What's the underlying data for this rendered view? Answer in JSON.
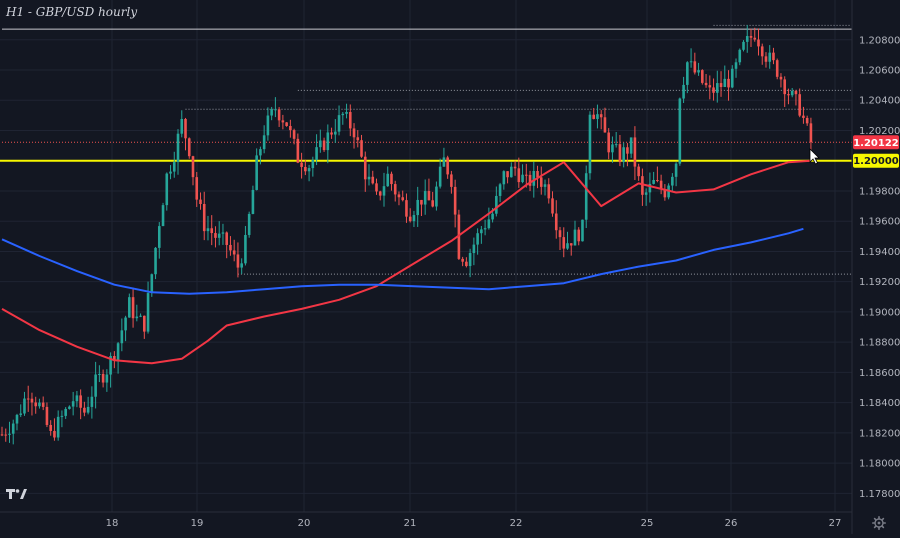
{
  "chart_title": "H1 - GBP/USD hourly",
  "colors": {
    "background": "#131722",
    "grid": "#1f2433",
    "up": "#26a69a",
    "down": "#ef5350",
    "ma_red": "#f23645",
    "ma_blue": "#2962ff",
    "support_line": "#f7f700",
    "axis_text": "#b2b5be",
    "current_price_tag": "#f23645"
  },
  "chart_data": {
    "type": "candlestick",
    "title": "H1 - GBP/USD hourly",
    "x_tick_labels": [
      "18",
      "19",
      "20",
      "21",
      "22",
      "25",
      "26",
      "27"
    ],
    "y_tick_labels": [
      "1.20800",
      "1.20600",
      "1.20400",
      "1.20200",
      "1.19800",
      "1.19600",
      "1.19400",
      "1.19200",
      "1.19000",
      "1.18800",
      "1.18600",
      "1.18400",
      "1.18200",
      "1.18000",
      "1.17800"
    ],
    "y_ticks": [
      1.208,
      1.206,
      1.204,
      1.202,
      1.198,
      1.196,
      1.194,
      1.192,
      1.19,
      1.188,
      1.186,
      1.184,
      1.182,
      1.18,
      1.178
    ],
    "ylim": [
      1.1769,
      1.2101
    ],
    "n_bars": 219,
    "current_price": 1.20122,
    "current_price_label": "1.20122",
    "key_level": 1.2,
    "key_level_label": "1.20000",
    "horizontal_levels": [
      {
        "value": 1.2087,
        "style": "solid",
        "from_bar": 0
      },
      {
        "value": 1.20895,
        "style": "dotted",
        "from_bar": 190
      },
      {
        "value": 1.20465,
        "style": "dotted",
        "from_bar": 79
      },
      {
        "value": 1.2034,
        "style": "dotted",
        "from_bar": 49
      },
      {
        "value": 1.20122,
        "style": "dotted",
        "from_bar": 0
      },
      {
        "value": 1.1925,
        "style": "dotted",
        "from_bar": 63
      }
    ],
    "moving_averages": [
      {
        "name": "red MA",
        "color": "#f23645",
        "points": [
          [
            0,
            1.1902
          ],
          [
            10,
            1.1888
          ],
          [
            20,
            1.1877
          ],
          [
            30,
            1.1868
          ],
          [
            40,
            1.1866
          ],
          [
            48,
            1.1869
          ],
          [
            55,
            1.1881
          ],
          [
            60,
            1.1891
          ],
          [
            70,
            1.1897
          ],
          [
            80,
            1.1902
          ],
          [
            90,
            1.1908
          ],
          [
            100,
            1.1917
          ],
          [
            110,
            1.1932
          ],
          [
            120,
            1.1947
          ],
          [
            130,
            1.1965
          ],
          [
            140,
            1.1984
          ],
          [
            150,
            1.1999
          ],
          [
            160,
            1.197
          ],
          [
            170,
            1.1985
          ],
          [
            180,
            1.1979
          ],
          [
            190,
            1.1981
          ],
          [
            200,
            1.1991
          ],
          [
            210,
            1.1999
          ],
          [
            216,
            1.2
          ]
        ]
      },
      {
        "name": "blue MA",
        "color": "#2962ff",
        "points": [
          [
            0,
            1.1948
          ],
          [
            10,
            1.1937
          ],
          [
            20,
            1.1927
          ],
          [
            30,
            1.1918
          ],
          [
            40,
            1.1913
          ],
          [
            50,
            1.1912
          ],
          [
            60,
            1.1913
          ],
          [
            70,
            1.1915
          ],
          [
            80,
            1.1917
          ],
          [
            90,
            1.1918
          ],
          [
            100,
            1.1918
          ],
          [
            110,
            1.1917
          ],
          [
            120,
            1.1916
          ],
          [
            130,
            1.1915
          ],
          [
            140,
            1.1917
          ],
          [
            150,
            1.1919
          ],
          [
            160,
            1.1925
          ],
          [
            170,
            1.193
          ],
          [
            180,
            1.1934
          ],
          [
            190,
            1.1941
          ],
          [
            200,
            1.1946
          ],
          [
            210,
            1.1952
          ],
          [
            214,
            1.1955
          ]
        ]
      }
    ],
    "price_path": [
      [
        0,
        1.1819
      ],
      [
        4,
        1.183
      ],
      [
        7,
        1.1848
      ],
      [
        10,
        1.1838
      ],
      [
        13,
        1.1818
      ],
      [
        16,
        1.183
      ],
      [
        19,
        1.1842
      ],
      [
        22,
        1.1834
      ],
      [
        25,
        1.1853
      ],
      [
        28,
        1.1862
      ],
      [
        31,
        1.188
      ],
      [
        34,
        1.1905
      ],
      [
        36,
        1.1895
      ],
      [
        38,
        1.1892
      ],
      [
        40,
        1.1925
      ],
      [
        42,
        1.196
      ],
      [
        44,
        1.199
      ],
      [
        46,
        1.2005
      ],
      [
        48,
        1.2025
      ],
      [
        50,
        1.2008
      ],
      [
        52,
        1.1975
      ],
      [
        54,
        1.1958
      ],
      [
        57,
        1.195
      ],
      [
        60,
        1.1945
      ],
      [
        63,
        1.193
      ],
      [
        65,
        1.1945
      ],
      [
        68,
        1.1998
      ],
      [
        70,
        1.202
      ],
      [
        73,
        1.2035
      ],
      [
        76,
        1.2025
      ],
      [
        79,
        1.2002
      ],
      [
        82,
        1.1997
      ],
      [
        85,
        1.2008
      ],
      [
        88,
        1.202
      ],
      [
        91,
        1.203
      ],
      [
        94,
        1.202
      ],
      [
        97,
        1.1992
      ],
      [
        100,
        1.1975
      ],
      [
        103,
        1.199
      ],
      [
        106,
        1.1975
      ],
      [
        109,
        1.1966
      ],
      [
        112,
        1.1975
      ],
      [
        115,
        1.1972
      ],
      [
        118,
        1.2
      ],
      [
        120,
        1.1988
      ],
      [
        122,
        1.194
      ],
      [
        124,
        1.1935
      ],
      [
        126,
        1.1945
      ],
      [
        128,
        1.1955
      ],
      [
        131,
        1.1965
      ],
      [
        134,
        1.199
      ],
      [
        137,
        1.1995
      ],
      [
        140,
        1.1985
      ],
      [
        143,
        1.199
      ],
      [
        146,
        1.198
      ],
      [
        148,
        1.196
      ],
      [
        150,
        1.1945
      ],
      [
        153,
        1.195
      ],
      [
        155,
        1.1955
      ],
      [
        157,
        1.2035
      ],
      [
        159,
        1.203
      ],
      [
        162,
        1.201
      ],
      [
        165,
        1.2003
      ],
      [
        168,
        1.201
      ],
      [
        171,
        1.1975
      ],
      [
        174,
        1.1985
      ],
      [
        177,
        1.198
      ],
      [
        180,
        1.2
      ],
      [
        181,
        1.2045
      ],
      [
        183,
        1.2065
      ],
      [
        186,
        1.2055
      ],
      [
        189,
        1.2045
      ],
      [
        192,
        1.205
      ],
      [
        195,
        1.2055
      ],
      [
        198,
        1.2075
      ],
      [
        201,
        1.2085
      ],
      [
        204,
        1.207
      ],
      [
        207,
        1.206
      ],
      [
        210,
        1.2045
      ],
      [
        213,
        1.2035
      ],
      [
        216,
        1.2012
      ]
    ]
  }
}
